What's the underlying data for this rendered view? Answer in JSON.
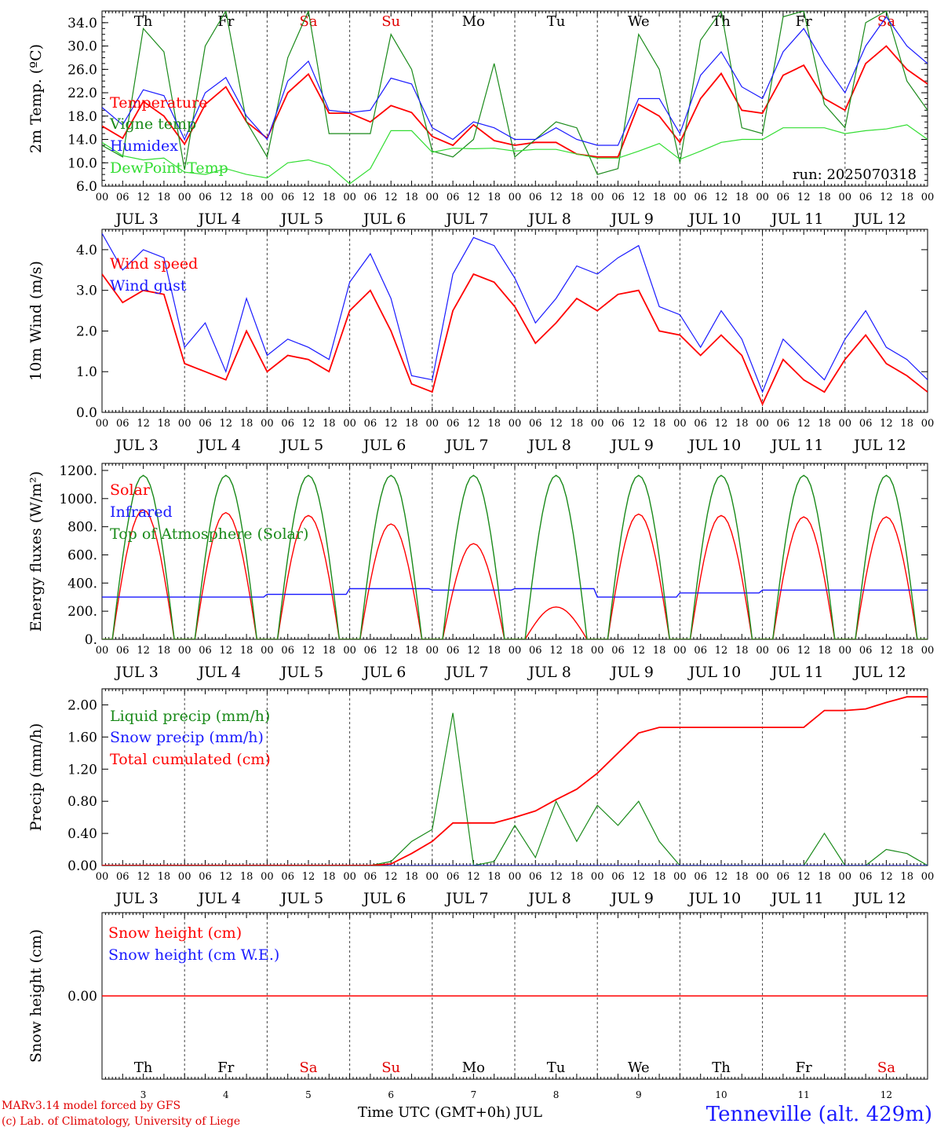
{
  "meta": {
    "run_label": "run: 2025070318",
    "credit_line1": "MARv3.14 model forced by GFS",
    "credit_line2": "(c) Lab. of Climatology, University of Liege",
    "station": "Tenneville (alt. 429m)",
    "x_axis_title": "Time UTC (GMT+0h) JUL"
  },
  "time_axis": {
    "hour_ticks": [
      "00",
      "06",
      "12",
      "18"
    ],
    "end_tick": "00",
    "days": [
      "JUL  3",
      "JUL  4",
      "JUL  5",
      "JUL  6",
      "JUL  7",
      "JUL  8",
      "JUL  9",
      "JUL 10",
      "JUL 11",
      "JUL 12"
    ],
    "weekdays": [
      "Th",
      "Fr",
      "Sa",
      "Su",
      "Mo",
      "Tu",
      "We",
      "Th",
      "Fr",
      "Sa"
    ],
    "weekday_colors": [
      "#000000",
      "#000000",
      "#e00000",
      "#e00000",
      "#000000",
      "#000000",
      "#000000",
      "#000000",
      "#000000",
      "#e00000"
    ],
    "day_numbers": [
      "3",
      "4",
      "5",
      "6",
      "7",
      "8",
      "9",
      "10",
      "11",
      "12"
    ]
  },
  "colors": {
    "red": "#ff0000",
    "darkgreen": "#1a8a1a",
    "blue": "#1a1aff",
    "lightgreen": "#33dd33"
  },
  "chart_data": [
    {
      "type": "line",
      "ylabel": "2m Temp. (ºC)",
      "ylim": [
        6,
        36
      ],
      "yticks": [
        "6.0",
        "10.0",
        "14.0",
        "18.0",
        "22.0",
        "26.0",
        "30.0",
        "34.0"
      ],
      "x": [
        0,
        6,
        12,
        18,
        24,
        30,
        36,
        42,
        48,
        54,
        60,
        66,
        72,
        78,
        84,
        90,
        96,
        102,
        108,
        114,
        120,
        126,
        132,
        138,
        144,
        150,
        156,
        162,
        168,
        174,
        180,
        186,
        192,
        198,
        204,
        210,
        216,
        222,
        228,
        234,
        240
      ],
      "series": [
        {
          "name": "Temperature",
          "color": "#ff0000",
          "values": [
            16.3,
            14.2,
            20.5,
            18,
            13.2,
            20,
            23,
            17,
            14.2,
            22,
            25.2,
            18.5,
            18.5,
            17,
            19.8,
            18.6,
            14.5,
            13,
            16.5,
            13.8,
            13,
            13.5,
            13.5,
            11.5,
            11,
            11,
            20,
            18,
            13.5,
            21,
            25.3,
            19,
            18.5,
            25,
            26.7,
            21,
            19,
            27,
            30,
            26,
            23.5
          ]
        },
        {
          "name": "Vigne temp",
          "color": "#1a8a1a",
          "values": [
            13,
            11,
            33,
            29,
            8.8,
            30,
            36,
            17,
            11,
            28,
            36,
            15,
            15,
            15,
            32,
            26,
            12,
            11,
            14,
            27,
            11,
            14,
            17,
            16,
            8,
            9,
            32,
            26,
            10,
            31,
            36,
            16,
            15,
            35,
            36,
            20,
            16,
            34,
            36,
            24,
            19
          ]
        },
        {
          "name": "Humidex",
          "color": "#1a1aff",
          "values": [
            19.5,
            16.5,
            22.5,
            21.5,
            14,
            22,
            24.6,
            18,
            14,
            24,
            27.4,
            19,
            18.6,
            19,
            24.5,
            23.5,
            16,
            14,
            17,
            16,
            14,
            14,
            16,
            14,
            13,
            13,
            21,
            21,
            15,
            25,
            29,
            23,
            21,
            29,
            33,
            27,
            22,
            30,
            35,
            30,
            27
          ]
        },
        {
          "name": "DewPoint Temp",
          "color": "#33dd33",
          "values": [
            13.5,
            11.2,
            10.5,
            10.8,
            8.4,
            8,
            9,
            8,
            7.4,
            10,
            10.5,
            9.5,
            6.4,
            9,
            15.5,
            15.5,
            11.8,
            12.5,
            12.4,
            12.5,
            12,
            12.3,
            12.3,
            11.5,
            10.8,
            10.8,
            12,
            13.3,
            10.6,
            12,
            13.5,
            14,
            14,
            16,
            16,
            16,
            15,
            15.5,
            15.8,
            16.5,
            14
          ]
        }
      ],
      "annotations": [
        "run: 2025070318"
      ]
    },
    {
      "type": "line",
      "ylabel": "10m Wind (m/s)",
      "ylim": [
        0,
        4.5
      ],
      "yticks": [
        "0.0",
        "1.0",
        "2.0",
        "3.0",
        "4.0"
      ],
      "x": [
        0,
        6,
        12,
        18,
        24,
        30,
        36,
        42,
        48,
        54,
        60,
        66,
        72,
        78,
        84,
        90,
        96,
        102,
        108,
        114,
        120,
        126,
        132,
        138,
        144,
        150,
        156,
        162,
        168,
        174,
        180,
        186,
        192,
        198,
        204,
        210,
        216,
        222,
        228,
        234,
        240
      ],
      "series": [
        {
          "name": "Wind speed",
          "color": "#ff0000",
          "values": [
            3.4,
            2.7,
            3,
            2.9,
            1.2,
            1,
            0.8,
            2,
            1,
            1.4,
            1.3,
            1,
            2.5,
            3,
            2,
            0.7,
            0.5,
            2.5,
            3.4,
            3.2,
            2.6,
            1.7,
            2.2,
            2.8,
            2.5,
            2.9,
            3,
            2,
            1.9,
            1.4,
            1.9,
            1.4,
            0.2,
            1.3,
            0.8,
            0.5,
            1.3,
            1.9,
            1.2,
            0.9,
            0.5
          ]
        },
        {
          "name": "Wind gust",
          "color": "#1a1aff",
          "values": [
            4.4,
            3.5,
            4,
            3.8,
            1.6,
            2.2,
            1,
            2.8,
            1.4,
            1.8,
            1.6,
            1.3,
            3.2,
            3.9,
            2.8,
            0.9,
            0.8,
            3.4,
            4.3,
            4.1,
            3.3,
            2.2,
            2.8,
            3.6,
            3.4,
            3.8,
            4.1,
            2.6,
            2.4,
            1.6,
            2.5,
            1.8,
            0.5,
            1.8,
            1.3,
            0.8,
            1.8,
            2.5,
            1.6,
            1.3,
            0.8
          ]
        }
      ]
    },
    {
      "type": "line",
      "ylabel": "Energy fluxes (W/m²)",
      "ylim": [
        0,
        1250
      ],
      "yticks": [
        "0.",
        "200.",
        "400.",
        "600.",
        "800.",
        "1000.",
        "1200."
      ],
      "x_days": [
        0,
        1,
        2,
        3,
        4,
        5,
        6,
        7,
        8,
        9
      ],
      "series": [
        {
          "name": "Solar",
          "color": "#ff0000",
          "daily_peak": [
            920,
            900,
            880,
            820,
            680,
            230,
            890,
            880,
            870,
            870
          ]
        },
        {
          "name": "Infrared",
          "color": "#1a1aff",
          "daily_mean": [
            300,
            300,
            320,
            360,
            350,
            360,
            300,
            330,
            350,
            350
          ]
        },
        {
          "name": "Top of Atmosphere (Solar)",
          "color": "#1a8a1a",
          "daily_peak": [
            1165,
            1165,
            1165,
            1165,
            1165,
            1165,
            1165,
            1165,
            1165,
            1165
          ]
        }
      ]
    },
    {
      "type": "line",
      "ylabel": "Precip (mm/h)",
      "ylim": [
        0,
        2.2
      ],
      "yticks": [
        "0.00",
        "0.40",
        "0.80",
        "1.20",
        "1.60",
        "2.00"
      ],
      "x": [
        0,
        78,
        84,
        90,
        96,
        102,
        108,
        114,
        120,
        126,
        132,
        138,
        144,
        150,
        156,
        162,
        168,
        174,
        180,
        186,
        192,
        198,
        204,
        210,
        216,
        222,
        228,
        234,
        240
      ],
      "series": [
        {
          "name": "Liquid precip (mm/h)",
          "color": "#1a8a1a",
          "values": [
            0,
            0,
            0.05,
            0.3,
            0.45,
            1.9,
            0,
            0.05,
            0.5,
            0.1,
            0.8,
            0.3,
            0.75,
            0.5,
            0.8,
            0.3,
            0,
            0,
            0,
            0,
            0,
            0,
            0,
            0.4,
            0,
            0,
            0.2,
            0.15,
            0
          ]
        },
        {
          "name": "Snow precip (mm/h)",
          "color": "#1a1aff",
          "values": [
            0,
            0,
            0,
            0,
            0,
            0,
            0,
            0,
            0,
            0,
            0,
            0,
            0,
            0,
            0,
            0,
            0,
            0,
            0,
            0,
            0,
            0,
            0,
            0,
            0,
            0,
            0,
            0,
            0
          ]
        },
        {
          "name": "Total cumulated (cm)",
          "color": "#ff0000",
          "values": [
            0,
            0,
            0.02,
            0.15,
            0.3,
            0.53,
            0.53,
            0.53,
            0.6,
            0.68,
            0.82,
            0.95,
            1.15,
            1.4,
            1.65,
            1.72,
            1.72,
            1.72,
            1.72,
            1.72,
            1.72,
            1.72,
            1.72,
            1.93,
            1.93,
            1.95,
            2.03,
            2.1,
            2.1
          ]
        }
      ]
    },
    {
      "type": "line",
      "ylabel": "Snow height (cm)",
      "ylim": [
        -1,
        1
      ],
      "yticks": [
        "0.00"
      ],
      "series": [
        {
          "name": "Snow height (cm)",
          "color": "#ff0000",
          "values": [
            0,
            0
          ]
        },
        {
          "name": "Snow height (cm W.E.)",
          "color": "#1a1aff",
          "values": [
            0,
            0
          ]
        }
      ]
    }
  ]
}
